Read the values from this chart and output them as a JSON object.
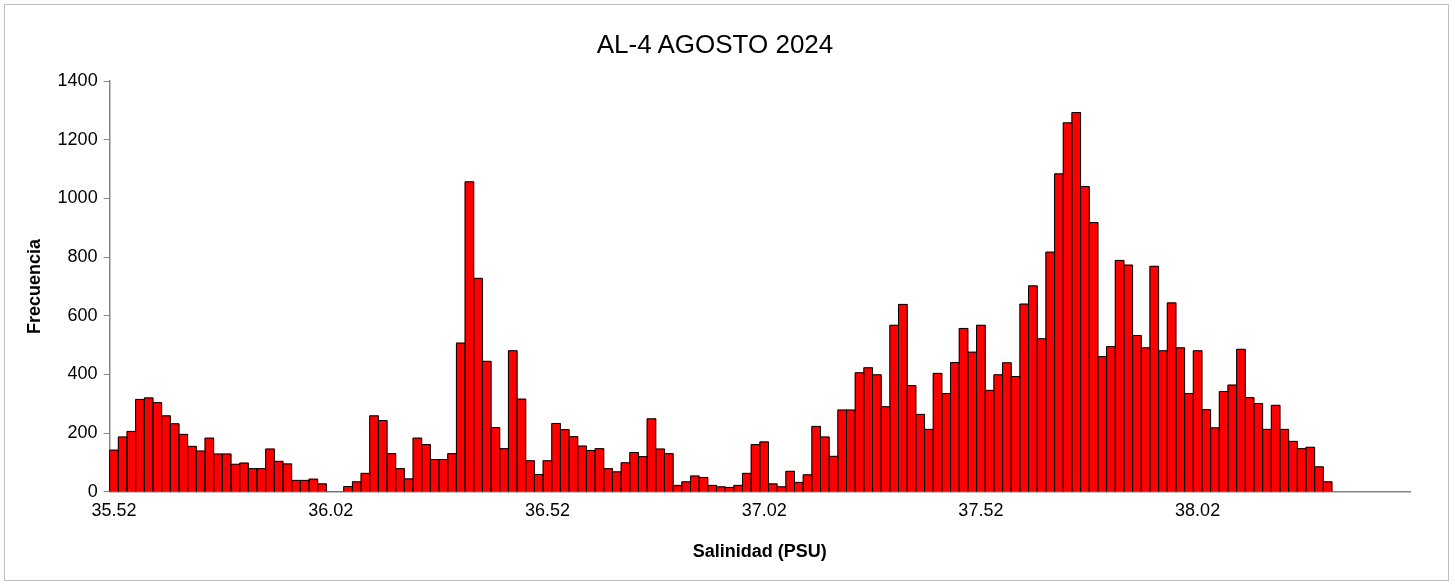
{
  "chart_data": {
    "type": "histogram",
    "title": "AL-4 AGOSTO 2024",
    "xlabel": "Salinidad (PSU)",
    "ylabel": "Frecuencia",
    "bins": [
      35.51,
      35.53,
      35.55,
      35.57,
      35.59,
      35.61,
      35.63,
      35.65,
      35.67,
      35.69,
      35.71,
      35.73,
      35.75,
      35.77,
      35.79,
      35.81,
      35.83,
      35.85,
      35.87,
      35.89,
      35.91,
      35.93,
      35.95,
      35.97,
      35.99,
      36.01,
      36.03,
      36.05,
      36.07,
      36.09,
      36.11,
      36.13,
      36.15,
      36.17,
      36.19,
      36.21,
      36.23,
      36.25,
      36.27,
      36.29,
      36.31,
      36.33,
      36.35,
      36.37,
      36.39,
      36.41,
      36.43,
      36.45,
      36.47,
      36.49,
      36.51,
      36.53,
      36.55,
      36.57,
      36.59,
      36.61,
      36.63,
      36.65,
      36.67,
      36.69,
      36.71,
      36.73,
      36.75,
      36.77,
      36.79,
      36.81,
      36.83,
      36.85,
      36.87,
      36.89,
      36.91,
      36.93,
      36.95,
      36.97,
      36.99,
      37.01,
      37.03,
      37.05,
      37.07,
      37.09,
      37.11,
      37.13,
      37.15,
      37.17,
      37.19,
      37.21,
      37.23,
      37.25,
      37.27,
      37.29,
      37.31,
      37.33,
      37.35,
      37.37,
      37.39,
      37.41,
      37.43,
      37.45,
      37.47,
      37.49,
      37.51,
      37.53,
      37.55,
      37.57,
      37.59,
      37.61,
      37.63,
      37.65,
      37.67,
      37.69,
      37.71,
      37.73,
      37.75,
      37.77,
      37.79,
      37.81,
      37.83,
      37.85,
      37.87,
      37.89,
      37.91,
      37.93,
      37.95,
      37.97,
      37.99,
      38.01,
      38.03,
      38.05,
      38.07,
      38.09,
      38.11,
      38.13,
      38.15,
      38.17,
      38.19,
      38.21,
      38.23,
      38.25,
      38.27,
      38.29,
      38.31,
      38.33
    ],
    "values": [
      142,
      187,
      206,
      315,
      320,
      304,
      259,
      232,
      196,
      155,
      139,
      183,
      129,
      129,
      94,
      98,
      79,
      79,
      146,
      104,
      95,
      39,
      39,
      43,
      27,
      0,
      0,
      18,
      34,
      63,
      259,
      243,
      130,
      79,
      44,
      183,
      161,
      110,
      110,
      130,
      507,
      1057,
      728,
      445,
      219,
      147,
      481,
      316,
      106,
      59,
      106,
      233,
      212,
      188,
      156,
      141,
      147,
      79,
      68,
      99,
      134,
      120,
      249,
      146,
      130,
      22,
      34,
      54,
      49,
      22,
      17,
      15,
      22,
      63,
      161,
      170,
      27,
      17,
      70,
      32,
      58,
      223,
      187,
      121,
      279,
      279,
      406,
      423,
      399,
      290,
      568,
      639,
      362,
      264,
      213,
      404,
      335,
      441,
      557,
      476,
      568,
      346,
      399,
      440,
      393,
      640,
      702,
      522,
      817,
      1084,
      1258,
      1293,
      1041,
      918,
      461,
      495,
      789,
      773,
      533,
      491,
      769,
      481,
      644,
      491,
      335,
      481,
      280,
      218,
      342,
      364,
      486,
      321,
      301,
      213,
      295,
      213,
      172,
      147,
      152,
      85,
      34
    ],
    "color": "#ff0000",
    "xlim": [
      35.51,
      38.51
    ],
    "xticks": [
      35.52,
      36.02,
      36.52,
      37.02,
      37.52,
      38.02
    ],
    "ylim": [
      0,
      1400
    ],
    "yticks": [
      0,
      200,
      400,
      600,
      800,
      1000,
      1200,
      1400
    ],
    "grid": false,
    "legend": false
  }
}
